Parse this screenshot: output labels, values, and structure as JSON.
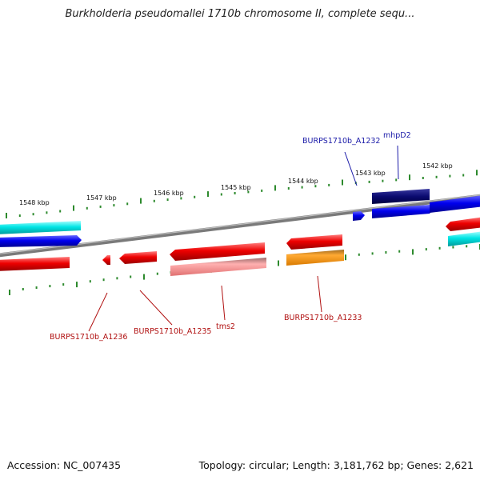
{
  "title": "Burkholderia pseudomallei 1710b chromosome II, complete sequ...",
  "footer": {
    "accession": "Accession: NC_007435",
    "summary": "Topology: circular; Length: 3,181,762 bp; Genes: 2,621"
  },
  "scale_labels": [
    "1548 kbp",
    "1547 kbp",
    "1546 kbp",
    "1545 kbp",
    "1544 kbp",
    "1543 kbp",
    "1542 kbp"
  ],
  "gene_labels": {
    "a1232": "BURPS1710b_A1232",
    "mhpd2": "mhpD2",
    "a1236": "BURPS1710b_A1236",
    "a1235": "BURPS1710b_A1235",
    "tms2": "tms2",
    "a1233": "BURPS1710b_A1233"
  },
  "colors": {
    "forward_label": "#1a1aa8",
    "reverse_label": "#b01010",
    "tick": "#2d8a2d",
    "backbone": "#8a8a8a"
  }
}
